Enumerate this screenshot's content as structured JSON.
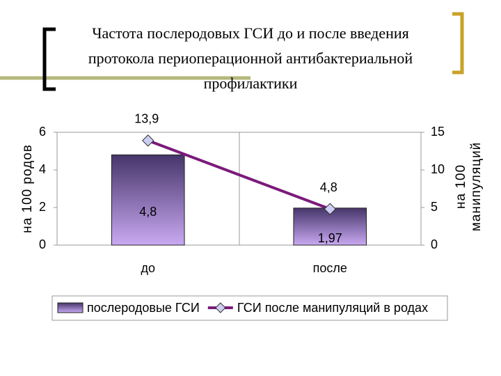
{
  "chart_data": {
    "type": "combo",
    "title": "Частота послеродовых ГСИ до и после введения протокола периоперационной антибактериальной профилактики",
    "categories": [
      "до",
      "после"
    ],
    "ylabel": "на 100 родов",
    "y2label": [
      "на 100",
      "манипуляций"
    ],
    "ylim": [
      0,
      6
    ],
    "yticks": [
      0,
      2,
      4,
      6
    ],
    "y2lim": [
      0,
      15
    ],
    "y2ticks": [
      0,
      5,
      10,
      15
    ],
    "series": [
      {
        "name": "послеродовые ГСИ",
        "type": "bar",
        "color": "#5a4680",
        "values": [
          4.8,
          1.97
        ],
        "value_labels": [
          "4,8",
          "1,97"
        ]
      },
      {
        "name": "ГСИ после манипуляций в родах",
        "type": "line",
        "axis": "y2",
        "color": "#7b1a7b",
        "values": [
          13.9,
          4.8
        ],
        "value_labels": [
          "13,9",
          "4,8"
        ]
      }
    ],
    "legend": "bottom"
  }
}
